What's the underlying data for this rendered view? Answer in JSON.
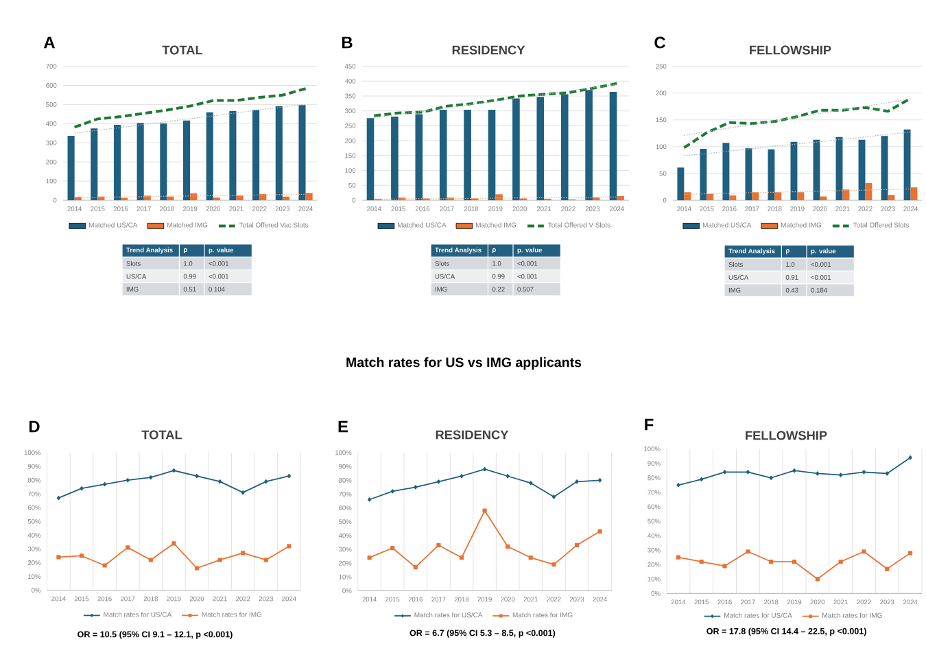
{
  "chart_data": [
    {
      "type": "bar",
      "title": "TOTAL",
      "categories": [
        "2014",
        "2015",
        "2016",
        "2017",
        "2018",
        "2019",
        "2020",
        "2021",
        "2022",
        "2023",
        "2024"
      ],
      "series": [
        {
          "name": "Matched US/CA",
          "color": "#1f5f7f",
          "values": [
            337,
            375,
            394,
            404,
            401,
            416,
            459,
            466,
            473,
            492,
            497
          ]
        },
        {
          "name": "Matched IMG",
          "color": "#e97132",
          "values": [
            17,
            19,
            12,
            24,
            19,
            36,
            14,
            24,
            33,
            19,
            38
          ]
        },
        {
          "name": "Total Offered Vac Slots",
          "type": "line",
          "line_style": "dashed",
          "color": "#1e7a34",
          "values": [
            382,
            425,
            437,
            454,
            471,
            492,
            521,
            521,
            537,
            549,
            583
          ]
        },
        {
          "type": "line",
          "line_style": "dotted",
          "color": "#a9b4bd",
          "values": [
            350,
            365,
            380,
            396,
            411,
            426,
            441,
            456,
            472,
            487,
            502
          ]
        },
        {
          "type": "line",
          "line_style": "dotted",
          "color": "#f4b183",
          "values": [
            14,
            16,
            17,
            19,
            21,
            22,
            24,
            26,
            28,
            29,
            31
          ]
        }
      ],
      "ylim": [
        0,
        700
      ],
      "yticks": [
        0,
        100,
        200,
        300,
        400,
        500,
        600,
        700
      ],
      "grid": "y",
      "legend": "bottom",
      "annotations": [
        "A",
        "Trend Analysis",
        "ρ",
        "p. value",
        "Slots",
        "1.0",
        "<0.001",
        "US/CA",
        "0.99",
        "<0.001",
        "IMG",
        "0.51",
        "0.104"
      ]
    },
    {
      "type": "bar",
      "title": "RESIDENCY",
      "categories": [
        "2014",
        "2015",
        "2016",
        "2017",
        "2018",
        "2019",
        "2020",
        "2021",
        "2022",
        "2023",
        "2024"
      ],
      "series": [
        {
          "name": "Matched US/CA",
          "color": "#1f5f7f",
          "values": [
            276,
            281,
            289,
            304,
            304,
            304,
            342,
            347,
            356,
            370,
            364
          ]
        },
        {
          "name": "Matched IMG",
          "color": "#e97132",
          "values": [
            5,
            9,
            6,
            9,
            6,
            20,
            6,
            5,
            3,
            9,
            14
          ]
        },
        {
          "name": "Total Offered V Slots",
          "type": "line",
          "line_style": "dashed",
          "color": "#1e7a34",
          "values": [
            284,
            293,
            296,
            316,
            324,
            336,
            350,
            356,
            361,
            376,
            392
          ]
        },
        {
          "type": "line",
          "line_style": "dotted",
          "color": "#a9b4bd",
          "values": [
            277,
            288,
            299,
            311,
            322,
            333,
            344,
            355,
            367,
            378,
            389
          ]
        },
        {
          "type": "line",
          "line_style": "dotted",
          "color": "#f4b183",
          "values": [
            3,
            4,
            5,
            5,
            6,
            7,
            8,
            9,
            9,
            10,
            11
          ]
        }
      ],
      "ylim": [
        0,
        450
      ],
      "yticks": [
        0,
        50,
        100,
        150,
        200,
        250,
        300,
        350,
        400,
        450
      ],
      "grid": "y",
      "legend": "bottom",
      "annotations": [
        "B",
        "Trend Analysis",
        "ρ",
        "p. value",
        "Slots",
        "1.0",
        "<0.001",
        "US/CA",
        "0.99",
        "<0.001",
        "IMG",
        "0.22",
        "0.507"
      ]
    },
    {
      "type": "bar",
      "title": "FELLOWSHIP",
      "categories": [
        "2014",
        "2015",
        "2016",
        "2017",
        "2018",
        "2019",
        "2020",
        "2021",
        "2022",
        "2023",
        "2024"
      ],
      "series": [
        {
          "name": "Matched US/CA",
          "color": "#1f5f7f",
          "values": [
            61,
            96,
            107,
            97,
            95,
            109,
            113,
            118,
            113,
            120,
            132
          ]
        },
        {
          "name": "Matched IMG",
          "color": "#e97132",
          "values": [
            15,
            12,
            9,
            15,
            15,
            15,
            7,
            20,
            32,
            10,
            24
          ]
        },
        {
          "name": "Total Offered Slots",
          "type": "line",
          "line_style": "dashed",
          "color": "#1e7a34",
          "values": [
            98,
            126,
            145,
            143,
            147,
            156,
            168,
            168,
            173,
            166,
            190
          ]
        },
        {
          "type": "line",
          "line_style": "dotted",
          "color": "#a9b4bd",
          "values": [
            121,
            128,
            135,
            141,
            148,
            155,
            162,
            169,
            175,
            182,
            189
          ]
        },
        {
          "type": "line",
          "line_style": "dotted",
          "color": "#a9b4bd",
          "values": [
            83,
            87,
            92,
            96,
            101,
            105,
            109,
            114,
            118,
            123,
            127
          ]
        },
        {
          "type": "line",
          "line_style": "dotted",
          "color": "#f4b183",
          "values": [
            11,
            12,
            13,
            14,
            15,
            16,
            17,
            18,
            19,
            20,
            21
          ]
        }
      ],
      "ylim": [
        0,
        250
      ],
      "yticks": [
        0,
        50,
        100,
        150,
        200,
        250
      ],
      "grid": "y",
      "legend": "bottom",
      "annotations": [
        "C",
        "Trend Analysis",
        "ρ",
        "p. value",
        "Slots",
        "1.0",
        "<0.001",
        "US/CA",
        "0.91",
        "<0.001",
        "IMG",
        "0.43",
        "0.184"
      ]
    },
    {
      "type": "other",
      "title": "Match rates for US vs IMG applicants"
    },
    {
      "type": "line",
      "title": "TOTAL",
      "categories": [
        "2014",
        "2015",
        "2016",
        "2017",
        "2018",
        "2019",
        "2020",
        "2021",
        "2022",
        "2023",
        "2024"
      ],
      "series": [
        {
          "name": "Match rates for US/CA",
          "color": "#1f5f7f",
          "marker": "diamond",
          "values": [
            67,
            74,
            77,
            80,
            82,
            87,
            83,
            79,
            71,
            79,
            83
          ]
        },
        {
          "name": "Match rates for IMG",
          "color": "#e97132",
          "marker": "square",
          "values": [
            24,
            25,
            18,
            31,
            22,
            34,
            16,
            22,
            27,
            22,
            32
          ]
        }
      ],
      "ylim": [
        0,
        100
      ],
      "yticks": [
        {
          "value": 0,
          "label": "0%"
        },
        {
          "value": 10,
          "label": "10%"
        },
        {
          "value": 20,
          "label": "20%"
        },
        {
          "value": 30,
          "label": "30%"
        },
        {
          "value": 40,
          "label": "40%"
        },
        {
          "value": 50,
          "label": "50%"
        },
        {
          "value": 60,
          "label": "60%"
        },
        {
          "value": 70,
          "label": "70%"
        },
        {
          "value": 80,
          "label": "80%"
        },
        {
          "value": 90,
          "label": "90%"
        },
        {
          "value": 100,
          "label": "100%"
        }
      ],
      "grid": "x",
      "legend": "bottom",
      "annotations": [
        "D",
        "OR = 10.5 (95% CI 9.1 – 12.1, p <0.001)"
      ]
    },
    {
      "type": "line",
      "title": "RESIDENCY",
      "categories": [
        "2014",
        "2015",
        "2016",
        "2017",
        "2018",
        "2019",
        "2020",
        "2021",
        "2022",
        "2023",
        "2024"
      ],
      "series": [
        {
          "name": "Match rates for US/CA",
          "color": "#1f5f7f",
          "marker": "diamond",
          "values": [
            66,
            72,
            75,
            79,
            83,
            88,
            83,
            78,
            68,
            79,
            80
          ]
        },
        {
          "name": "Match rates for IMG",
          "color": "#e97132",
          "marker": "square",
          "values": [
            24,
            31,
            17,
            33,
            24,
            58,
            32,
            24,
            19,
            33,
            43
          ]
        }
      ],
      "ylim": [
        0,
        100
      ],
      "yticks": [
        {
          "value": 0,
          "label": "0%"
        },
        {
          "value": 10,
          "label": "10%"
        },
        {
          "value": 20,
          "label": "20%"
        },
        {
          "value": 30,
          "label": "30%"
        },
        {
          "value": 40,
          "label": "40%"
        },
        {
          "value": 50,
          "label": "50%"
        },
        {
          "value": 60,
          "label": "60%"
        },
        {
          "value": 70,
          "label": "70%"
        },
        {
          "value": 80,
          "label": "80%"
        },
        {
          "value": 90,
          "label": "90%"
        },
        {
          "value": 100,
          "label": "100%"
        }
      ],
      "grid": "x",
      "legend": "bottom",
      "annotations": [
        "E",
        "OR = 6.7 (95% CI 5.3 – 8.5, p <0.001)"
      ]
    },
    {
      "type": "line",
      "title": "FELLOWSHIP",
      "categories": [
        "2014",
        "2015",
        "2016",
        "2017",
        "2018",
        "2019",
        "2020",
        "2021",
        "2022",
        "2023",
        "2024"
      ],
      "series": [
        {
          "name": "Match rates for US/CA",
          "color": "#1f5f7f",
          "marker": "diamond",
          "values": [
            75,
            79,
            84,
            84,
            80,
            85,
            83,
            82,
            84,
            83,
            94
          ]
        },
        {
          "name": "Match rates for IMG",
          "color": "#e97132",
          "marker": "square",
          "values": [
            25,
            22,
            19,
            29,
            22,
            22,
            10,
            22,
            29,
            17,
            28
          ]
        }
      ],
      "ylim": [
        0,
        100
      ],
      "yticks": [
        {
          "value": 0,
          "label": "0%"
        },
        {
          "value": 10,
          "label": "10%"
        },
        {
          "value": 20,
          "label": "20%"
        },
        {
          "value": 30,
          "label": "30%"
        },
        {
          "value": 40,
          "label": "40%"
        },
        {
          "value": 50,
          "label": "50%"
        },
        {
          "value": 60,
          "label": "60%"
        },
        {
          "value": 70,
          "label": "70%"
        },
        {
          "value": 80,
          "label": "80%"
        },
        {
          "value": 90,
          "label": "90%"
        },
        {
          "value": 100,
          "label": "100%"
        }
      ],
      "grid": "x",
      "legend": "bottom",
      "annotations": [
        "F",
        "OR = 17.8 (95% CI 14.4 – 22.5, p <0.001)"
      ]
    }
  ]
}
